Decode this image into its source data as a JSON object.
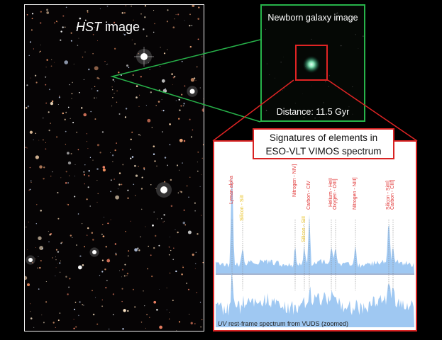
{
  "hst_panel": {
    "title_emph": "HST",
    "title_rest": " image"
  },
  "newborn_panel": {
    "title": "Newborn galaxy image",
    "distance": "Distance: 11.5 Gyr"
  },
  "spectrum_panel": {
    "title_line1": "Signatures of elements in",
    "title_line2": "ESO-VLT VIMOS spectrum",
    "caption_emph": "UV",
    "caption_rest": " rest-frame spectrum from VUDS (zoomed)",
    "lines": [
      {
        "label": "Lyman alpha",
        "color": "#e03030"
      },
      {
        "label": "Silicon - SiII",
        "color": "#e8c020"
      },
      {
        "label": "Nitrogen - NIV]",
        "color": "#e03030"
      },
      {
        "label": "Silicon - SiII",
        "color": "#e8c020"
      },
      {
        "label": "Carbon - CIV",
        "color": "#e03030"
      },
      {
        "label": "Helium - HeII",
        "color": "#e03030"
      },
      {
        "label": "Oxygen - OIII]",
        "color": "#e03030"
      },
      {
        "label": "Nitrogen - NIII]",
        "color": "#e03030"
      },
      {
        "label": "Silicon - SiIII]",
        "color": "#e03030"
      },
      {
        "label": "Carbon - CIII]",
        "color": "#e03030"
      }
    ]
  },
  "colors": {
    "connector_green": "#27b34a",
    "connector_red": "#e02424",
    "spectrum_fill": "#9fc8f2"
  }
}
